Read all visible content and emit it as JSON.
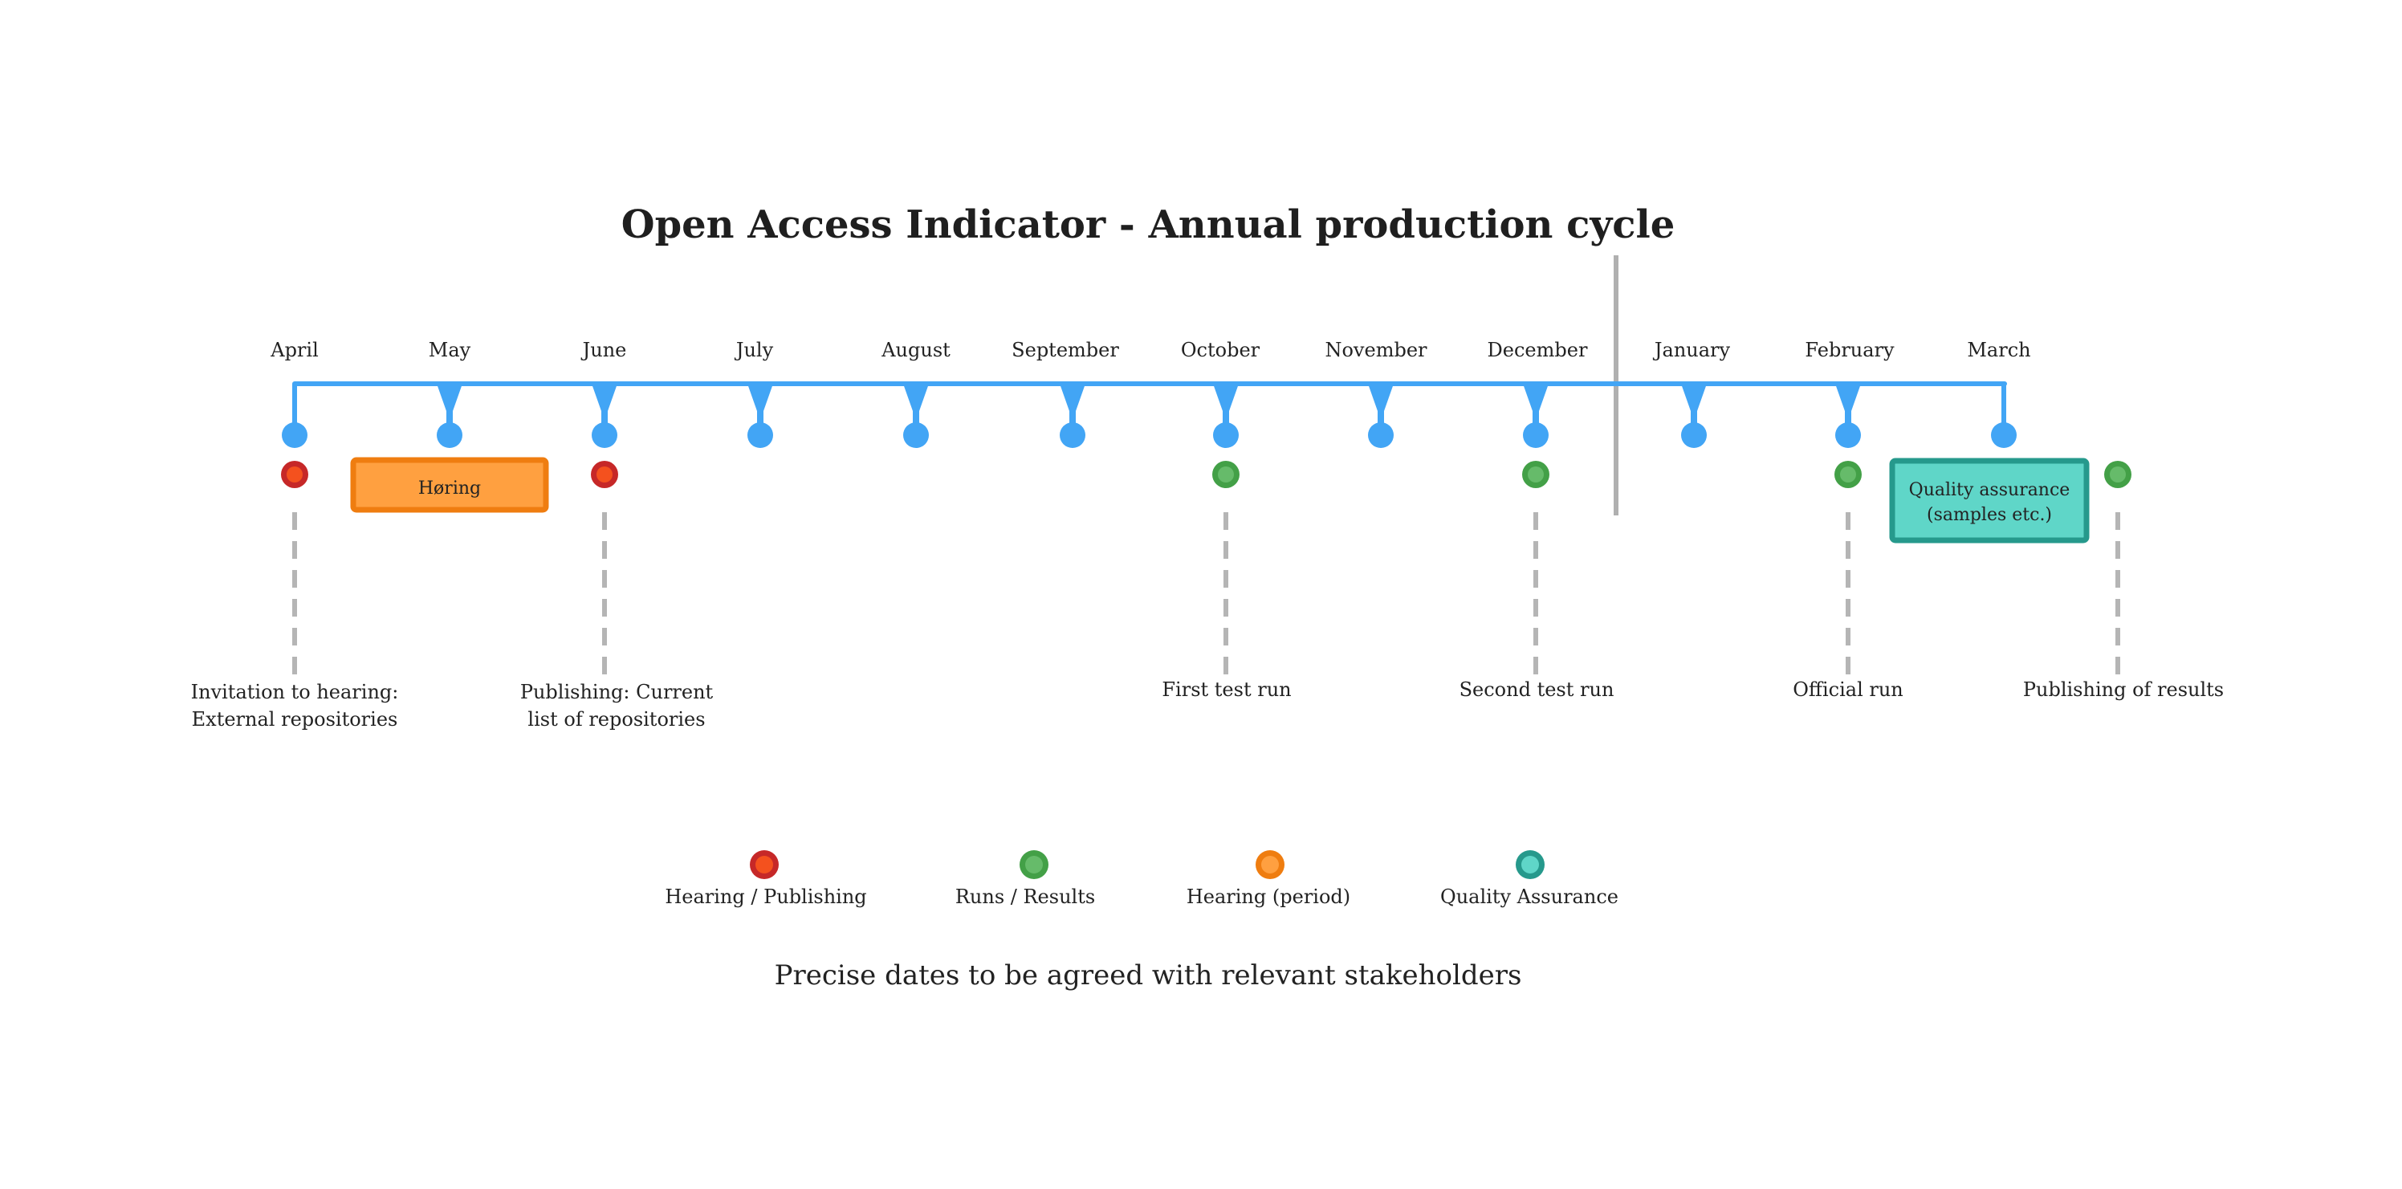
{
  "title": "Open Access Indicator - Annual production cycle",
  "months": [
    "April",
    "May",
    "June",
    "July",
    "August",
    "September",
    "October",
    "November",
    "December",
    "January",
    "February",
    "March"
  ],
  "events": [
    {
      "kind": "hearing_publishing",
      "label_lines": [
        "Invitation to hearing:",
        "External repositories"
      ]
    },
    {
      "kind": "hearing_period",
      "box_lines": [
        "Høring"
      ]
    },
    {
      "kind": "hearing_publishing",
      "label_lines": [
        "Publishing: Current",
        "list of repositories"
      ]
    },
    {
      "kind": "runs_results",
      "label_lines": [
        "First test run"
      ]
    },
    {
      "kind": "runs_results",
      "label_lines": [
        "Second test run"
      ]
    },
    {
      "kind": "runs_results",
      "label_lines": [
        "Official run"
      ]
    },
    {
      "kind": "quality_assurance",
      "box_lines": [
        "Quality assurance",
        "(samples etc.)"
      ]
    },
    {
      "kind": "runs_results",
      "label_lines": [
        "Publishing of results"
      ]
    }
  ],
  "legend": [
    {
      "kind": "hearing_publishing",
      "label": "Hearing / Publishing"
    },
    {
      "kind": "runs_results",
      "label": "Runs / Results"
    },
    {
      "kind": "hearing_period",
      "label": "Hearing (period)"
    },
    {
      "kind": "quality_assurance",
      "label": "Quality Assurance"
    }
  ],
  "footer": "Precise dates to be agreed with relevant stakeholders",
  "colors": {
    "timeline": "#42a5f5",
    "divider": "#b0b0b0",
    "connector": "#b5b5b5",
    "hearing_publishing": {
      "outer": "#c62828",
      "inner": "#f4511e"
    },
    "runs_results": {
      "outer": "#43a047",
      "inner": "#66bb6a"
    },
    "hearing_period": {
      "outer": "#ef7d10",
      "inner": "#ffa040"
    },
    "quality_assurance": {
      "outer": "#26998c",
      "inner": "#5fd6c8"
    }
  }
}
